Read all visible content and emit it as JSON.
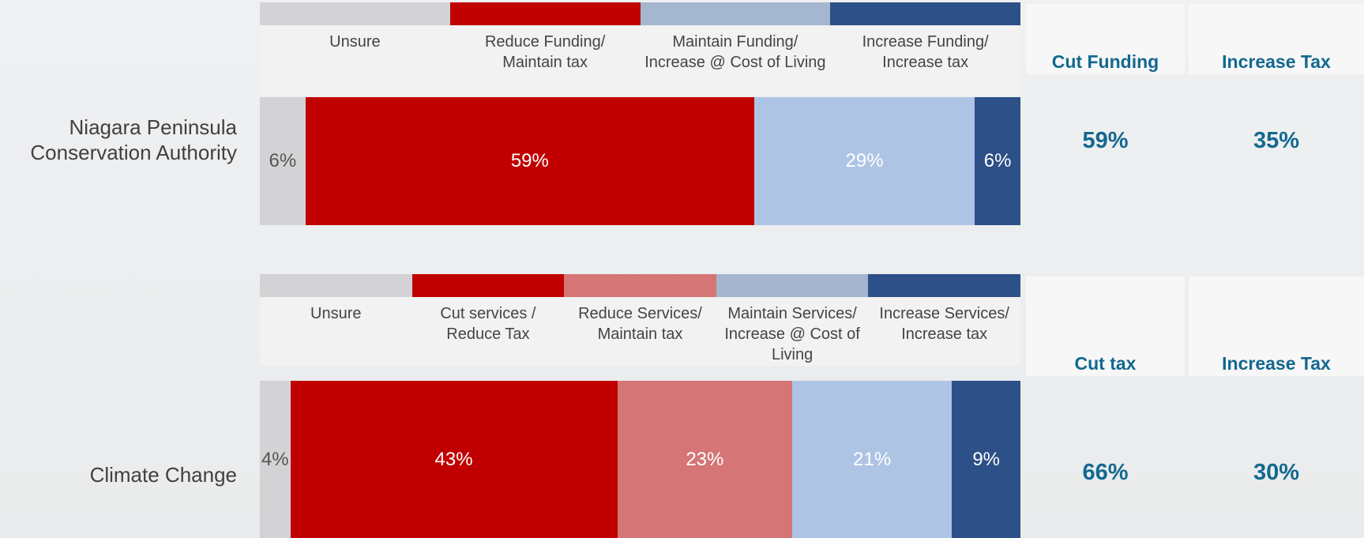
{
  "chart_data": [
    {
      "type": "stacked_bar",
      "categories": [
        "Niagara Peninsula Conservation Authority"
      ],
      "series": [
        {
          "name": "Unsure",
          "color": "#d3d3d6",
          "values": [
            6
          ],
          "value_labels": [
            "6%"
          ]
        },
        {
          "name": "Reduce Funding/ Maintain tax",
          "color": "#c00000",
          "values": [
            59
          ],
          "value_labels": [
            "59%"
          ]
        },
        {
          "name": "Maintain Funding/ Increase @ Cost of Living",
          "color": "#aec4e4",
          "values": [
            29
          ],
          "value_labels": [
            "29%"
          ]
        },
        {
          "name": "Increase Funding/ Increase tax",
          "color": "#2c5087",
          "values": [
            6
          ],
          "value_labels": [
            "6%"
          ]
        }
      ],
      "summary": [
        {
          "label": "Cut Funding",
          "value": "59%"
        },
        {
          "label": "Increase Tax",
          "value": "35%"
        }
      ]
    },
    {
      "type": "stacked_bar",
      "categories": [
        "Climate Change"
      ],
      "series": [
        {
          "name": "Unsure",
          "color": "#d3d3d6",
          "values": [
            4
          ],
          "value_labels": [
            "4%"
          ]
        },
        {
          "name": "Cut services / Reduce Tax",
          "color": "#c00000",
          "values": [
            43
          ],
          "value_labels": [
            "43%"
          ]
        },
        {
          "name": "Reduce Services/ Maintain tax",
          "color": "#d57575",
          "values": [
            23
          ],
          "value_labels": [
            "23%"
          ]
        },
        {
          "name": "Maintain Services/ Increase @ Cost of Living",
          "color": "#aec4e4",
          "values": [
            21
          ],
          "value_labels": [
            "21%"
          ]
        },
        {
          "name": "Increase Services/ Increase tax",
          "color": "#2c5087",
          "values": [
            9
          ],
          "value_labels": [
            "9%"
          ]
        }
      ],
      "summary": [
        {
          "label": "Cut tax",
          "value": "66%"
        },
        {
          "label": "Increase Tax",
          "value": "30%"
        }
      ]
    }
  ]
}
